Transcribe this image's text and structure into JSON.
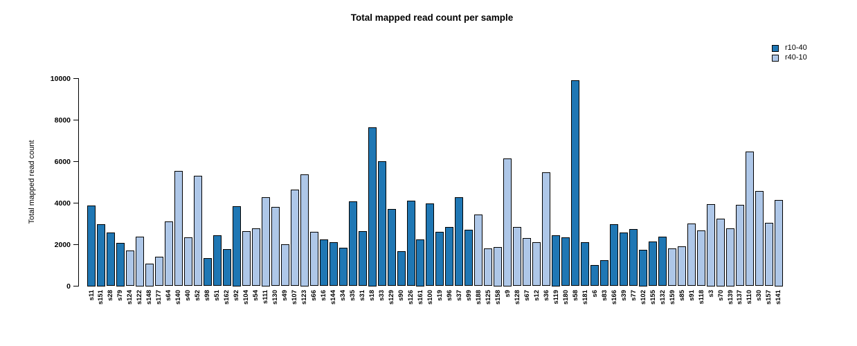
{
  "title": "Total mapped read count per sample",
  "chart_data": {
    "type": "bar",
    "title": "Total mapped read count per sample",
    "xlabel": "",
    "ylabel": "Total mapped read count",
    "ylim": [
      0,
      10000
    ],
    "yticks": [
      0,
      2000,
      4000,
      6000,
      8000,
      10000
    ],
    "grid": false,
    "legend_position": "top-right",
    "legend": [
      {
        "label": "r10-40",
        "color": "#1F77B4"
      },
      {
        "label": "r40-10",
        "color": "#AEC7E8"
      }
    ],
    "series_colors": {
      "r10-40": "#1F77B4",
      "r40-10": "#AEC7E8"
    },
    "samples": [
      {
        "name": "s11",
        "group": "r10-40",
        "value": 3900
      },
      {
        "name": "s151",
        "group": "r10-40",
        "value": 3000
      },
      {
        "name": "s28",
        "group": "r10-40",
        "value": 2570
      },
      {
        "name": "s79",
        "group": "r10-40",
        "value": 2100
      },
      {
        "name": "s124",
        "group": "r40-10",
        "value": 1720
      },
      {
        "name": "s122",
        "group": "r40-10",
        "value": 2400
      },
      {
        "name": "s148",
        "group": "r40-10",
        "value": 1100
      },
      {
        "name": "s177",
        "group": "r40-10",
        "value": 1430
      },
      {
        "name": "s64",
        "group": "r40-10",
        "value": 3120
      },
      {
        "name": "s140",
        "group": "r40-10",
        "value": 5560
      },
      {
        "name": "s40",
        "group": "r40-10",
        "value": 2340
      },
      {
        "name": "s52",
        "group": "r40-10",
        "value": 5330
      },
      {
        "name": "s98",
        "group": "r10-40",
        "value": 1360
      },
      {
        "name": "s51",
        "group": "r10-40",
        "value": 2440
      },
      {
        "name": "s162",
        "group": "r10-40",
        "value": 1770
      },
      {
        "name": "s92",
        "group": "r10-40",
        "value": 3850
      },
      {
        "name": "s104",
        "group": "r40-10",
        "value": 2640
      },
      {
        "name": "s54",
        "group": "r40-10",
        "value": 2780
      },
      {
        "name": "s111",
        "group": "r40-10",
        "value": 4300
      },
      {
        "name": "s130",
        "group": "r40-10",
        "value": 3810
      },
      {
        "name": "s49",
        "group": "r40-10",
        "value": 2010
      },
      {
        "name": "s107",
        "group": "r40-10",
        "value": 4660
      },
      {
        "name": "s123",
        "group": "r40-10",
        "value": 5400
      },
      {
        "name": "s66",
        "group": "r40-10",
        "value": 2630
      },
      {
        "name": "s16",
        "group": "r10-40",
        "value": 2260
      },
      {
        "name": "s144",
        "group": "r10-40",
        "value": 2110
      },
      {
        "name": "s34",
        "group": "r10-40",
        "value": 1840
      },
      {
        "name": "s35",
        "group": "r10-40",
        "value": 4090
      },
      {
        "name": "s31",
        "group": "r10-40",
        "value": 2660
      },
      {
        "name": "s18",
        "group": "r10-40",
        "value": 7650
      },
      {
        "name": "s33",
        "group": "r10-40",
        "value": 6030
      },
      {
        "name": "s129",
        "group": "r10-40",
        "value": 3720
      },
      {
        "name": "s90",
        "group": "r10-40",
        "value": 1690
      },
      {
        "name": "s126",
        "group": "r10-40",
        "value": 4120
      },
      {
        "name": "s161",
        "group": "r10-40",
        "value": 2250
      },
      {
        "name": "s100",
        "group": "r10-40",
        "value": 3990
      },
      {
        "name": "s19",
        "group": "r10-40",
        "value": 2630
      },
      {
        "name": "s96",
        "group": "r10-40",
        "value": 2840
      },
      {
        "name": "s37",
        "group": "r10-40",
        "value": 4290
      },
      {
        "name": "s99",
        "group": "r10-40",
        "value": 2730
      },
      {
        "name": "s188",
        "group": "r40-10",
        "value": 3460
      },
      {
        "name": "s125",
        "group": "r40-10",
        "value": 1820
      },
      {
        "name": "s158",
        "group": "r40-10",
        "value": 1900
      },
      {
        "name": "s9",
        "group": "r40-10",
        "value": 6150
      },
      {
        "name": "s128",
        "group": "r40-10",
        "value": 2840
      },
      {
        "name": "s67",
        "group": "r40-10",
        "value": 2320
      },
      {
        "name": "s12",
        "group": "r40-10",
        "value": 2110
      },
      {
        "name": "s36",
        "group": "r40-10",
        "value": 5480
      },
      {
        "name": "s119",
        "group": "r10-40",
        "value": 2450
      },
      {
        "name": "s180",
        "group": "r10-40",
        "value": 2340
      },
      {
        "name": "s58",
        "group": "r10-40",
        "value": 9920
      },
      {
        "name": "s181",
        "group": "r10-40",
        "value": 2130
      },
      {
        "name": "s6",
        "group": "r10-40",
        "value": 1010
      },
      {
        "name": "s83",
        "group": "r10-40",
        "value": 1260
      },
      {
        "name": "s166",
        "group": "r10-40",
        "value": 2970
      },
      {
        "name": "s39",
        "group": "r10-40",
        "value": 2590
      },
      {
        "name": "s77",
        "group": "r10-40",
        "value": 2760
      },
      {
        "name": "s102",
        "group": "r10-40",
        "value": 1750
      },
      {
        "name": "s155",
        "group": "r10-40",
        "value": 2160
      },
      {
        "name": "s132",
        "group": "r10-40",
        "value": 2380
      },
      {
        "name": "s159",
        "group": "r40-10",
        "value": 1830
      },
      {
        "name": "s85",
        "group": "r40-10",
        "value": 1920
      },
      {
        "name": "s91",
        "group": "r40-10",
        "value": 3030
      },
      {
        "name": "s118",
        "group": "r40-10",
        "value": 2690
      },
      {
        "name": "s3",
        "group": "r40-10",
        "value": 3950
      },
      {
        "name": "s70",
        "group": "r40-10",
        "value": 3250
      },
      {
        "name": "s139",
        "group": "r40-10",
        "value": 2800
      },
      {
        "name": "s137",
        "group": "r40-10",
        "value": 3920
      },
      {
        "name": "s110",
        "group": "r40-10",
        "value": 6480
      },
      {
        "name": "s30",
        "group": "r40-10",
        "value": 4570
      },
      {
        "name": "s157",
        "group": "r40-10",
        "value": 3040
      },
      {
        "name": "s141",
        "group": "r40-10",
        "value": 4150
      }
    ]
  }
}
